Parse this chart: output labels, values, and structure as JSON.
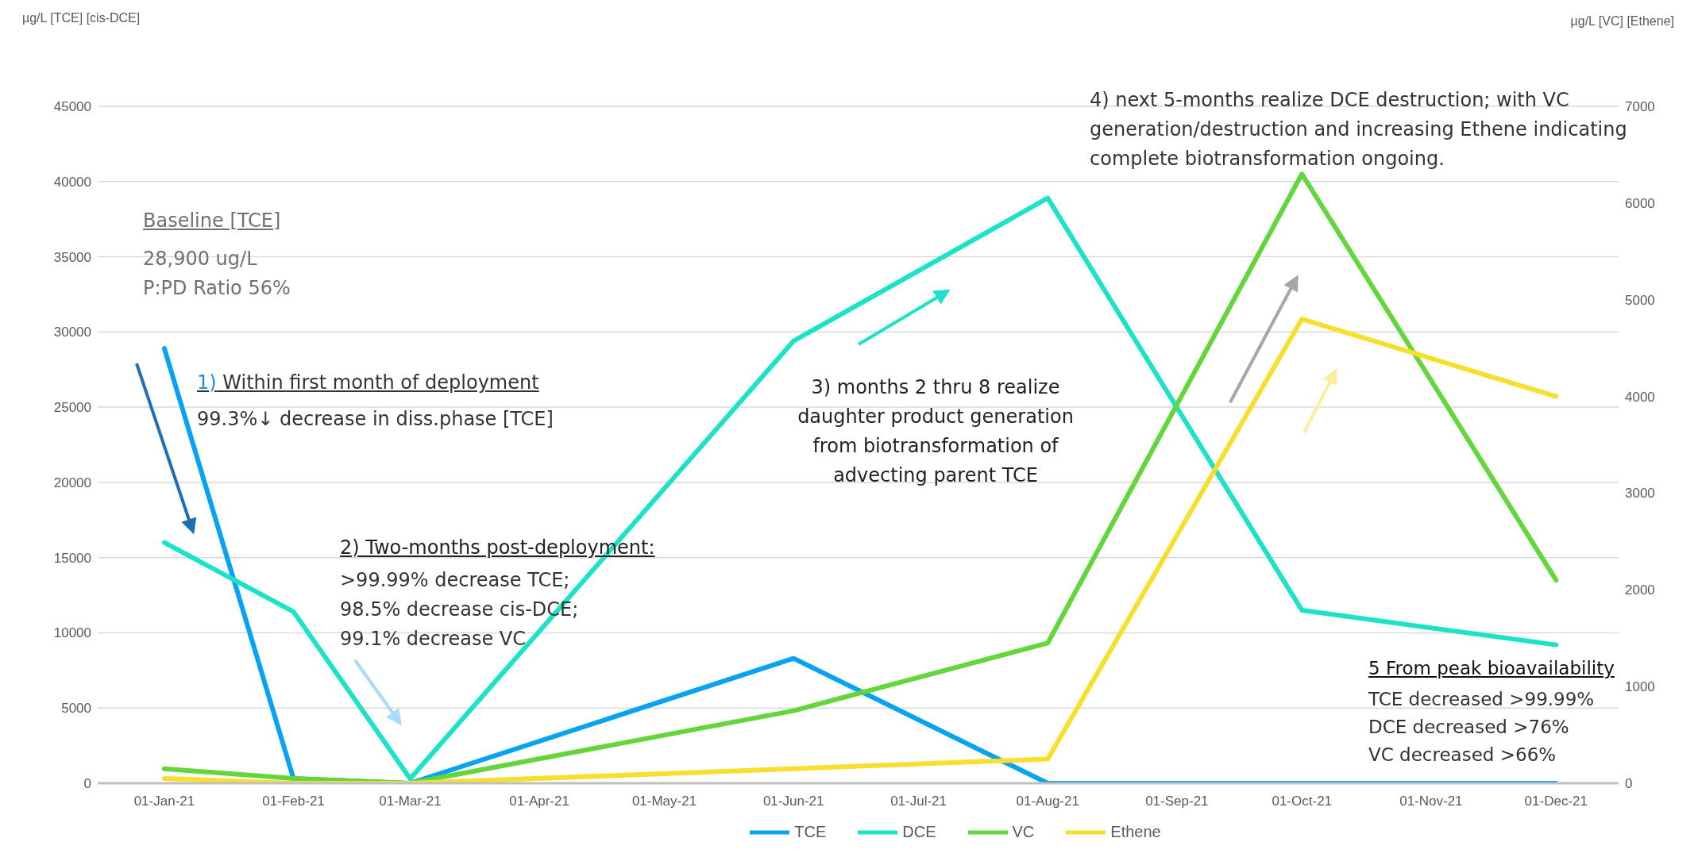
{
  "chart_data": {
    "type": "line",
    "x": [
      "2021-01-01",
      "2021-02-01",
      "2021-03-01",
      "2021-06-01",
      "2021-08-01",
      "2021-10-01",
      "2021-12-01"
    ],
    "series": [
      {
        "name": "TCE",
        "color": "#05a3f2",
        "values": [
          28900,
          300,
          0,
          8300,
          0,
          0,
          0
        ]
      },
      {
        "name": "DCE",
        "color": "#1ce3c8",
        "values": [
          16000,
          11400,
          300,
          29400,
          38900,
          11500,
          9200
        ]
      },
      {
        "name": "VC",
        "color": "#62d63a",
        "axis": "y2",
        "values": [
          150,
          50,
          0,
          750,
          1450,
          6300,
          2100
        ]
      },
      {
        "name": "Ethene",
        "color": "#f8df2e",
        "axis": "y2",
        "values": [
          50,
          0,
          0,
          150,
          250,
          4800,
          4000
        ]
      }
    ],
    "xlim": [
      "2020-12-16",
      "2021-12-16"
    ],
    "xticks": [
      {
        "value": "2021-01-01",
        "label": "01-Jan-21"
      },
      {
        "value": "2021-02-01",
        "label": "01-Feb-21"
      },
      {
        "value": "2021-03-01",
        "label": "01-Mar-21"
      },
      {
        "value": "2021-04-01",
        "label": "01-Apr-21"
      },
      {
        "value": "2021-05-01",
        "label": "01-May-21"
      },
      {
        "value": "2021-06-01",
        "label": "01-Jun-21"
      },
      {
        "value": "2021-07-01",
        "label": "01-Jul-21"
      },
      {
        "value": "2021-08-01",
        "label": "01-Aug-21"
      },
      {
        "value": "2021-09-01",
        "label": "01-Sep-21"
      },
      {
        "value": "2021-10-01",
        "label": "01-Oct-21"
      },
      {
        "value": "2021-11-01",
        "label": "01-Nov-21"
      },
      {
        "value": "2021-12-01",
        "label": "01-Dec-21"
      }
    ],
    "ylim": [
      0,
      45000
    ],
    "yticks": [
      0,
      5000,
      10000,
      15000,
      20000,
      25000,
      30000,
      35000,
      40000,
      45000
    ],
    "y2lim": [
      0,
      7000
    ],
    "y2ticks": [
      0,
      1000,
      2000,
      3000,
      4000,
      5000,
      6000,
      7000
    ],
    "grid": "y",
    "legend": "bottom",
    "marker": "none",
    "line_style": "solid",
    "annotations": [
      "µg/L [TCE] [cis-DCE]",
      "µg/L [VC] [Ethene]",
      "Baseline [TCE]",
      "28,900 ug/L\nP:PD Ratio 56%",
      "1) Within first month of deployment",
      "99.3%↓ decrease in diss.phase [TCE]",
      "2) Two-months post-deployment:",
      ">99.99% decrease TCE;\n98.5% decrease cis-DCE;\n99.1% decrease VC",
      "3) months 2 thru 8 realize\ndaughter product generation\nfrom biotransformation of\nadvecting parent TCE",
      "4)  next 5-months realize DCE destruction; with VC\ngeneration/destruction and increasing Ethene indicating\ncomplete biotransformation ongoing.",
      "5 From peak bioavailability",
      "TCE decreased >99.99%\nDCE decreased >76%\nVC decreased >66%"
    ]
  }
}
